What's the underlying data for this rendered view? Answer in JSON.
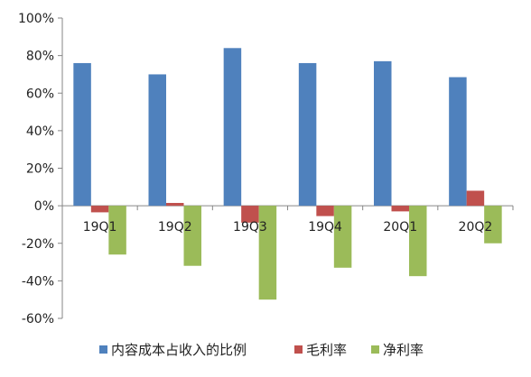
{
  "chart_data": {
    "type": "bar",
    "categories": [
      "19Q1",
      "19Q2",
      "19Q3",
      "19Q4",
      "20Q1",
      "20Q2"
    ],
    "series": [
      {
        "name": "内容成本占收入的比例",
        "color": "#4F81BD",
        "values": [
          76,
          70,
          84,
          76,
          77,
          68.5
        ]
      },
      {
        "name": "毛利率",
        "color": "#C0504D",
        "values": [
          -3.5,
          1.5,
          -9,
          -5.5,
          -3,
          8
        ]
      },
      {
        "name": "净利率",
        "color": "#9BBB59",
        "values": [
          -26,
          -32,
          -50,
          -33,
          -37.5,
          -20
        ]
      }
    ],
    "ylim": [
      -60,
      100
    ],
    "yticks": [
      -60,
      -40,
      -20,
      0,
      20,
      40,
      60,
      80,
      100
    ],
    "ytick_labels": [
      "-60%",
      "-40%",
      "-20%",
      "0%",
      "20%",
      "40%",
      "60%",
      "80%",
      "100%"
    ],
    "grid": false,
    "legend_position": "bottom"
  }
}
